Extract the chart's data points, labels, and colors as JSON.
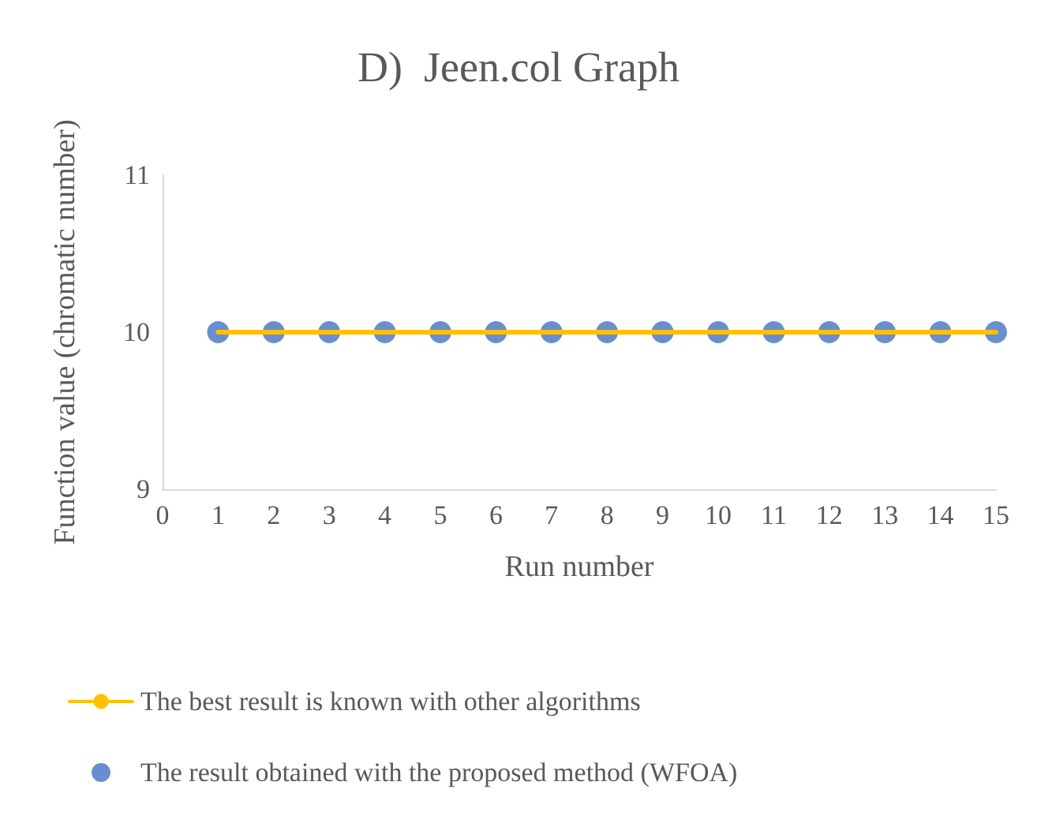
{
  "chart_data": {
    "type": "line",
    "title": "D)  Jeen.col Graph",
    "xlabel": "Run number",
    "ylabel": "Function value (chromatic number)",
    "xlim": [
      0,
      15
    ],
    "xticks": [
      0,
      1,
      2,
      3,
      4,
      5,
      6,
      7,
      8,
      9,
      10,
      11,
      12,
      13,
      14,
      15
    ],
    "ylim": [
      9,
      11
    ],
    "yticks": [
      9,
      10,
      11
    ],
    "grid": false,
    "legend": "bottom",
    "series": [
      {
        "type": "line",
        "name": "The best result is known with other algorithms",
        "color": "#ffc000",
        "marker": "none",
        "line_style": "solid",
        "x": [
          1,
          2,
          3,
          4,
          5,
          6,
          7,
          8,
          9,
          10,
          11,
          12,
          13,
          14,
          15
        ],
        "values": [
          10,
          10,
          10,
          10,
          10,
          10,
          10,
          10,
          10,
          10,
          10,
          10,
          10,
          10,
          10
        ]
      },
      {
        "type": "scatter",
        "name": "The result obtained with the proposed method (WFOA)",
        "color": "#4472c4",
        "marker": "circle",
        "x": [
          1,
          2,
          3,
          4,
          5,
          6,
          7,
          8,
          9,
          10,
          11,
          12,
          13,
          14,
          15
        ],
        "values": [
          10,
          10,
          10,
          10,
          10,
          10,
          10,
          10,
          10,
          10,
          10,
          10,
          10,
          10,
          10
        ]
      }
    ]
  }
}
